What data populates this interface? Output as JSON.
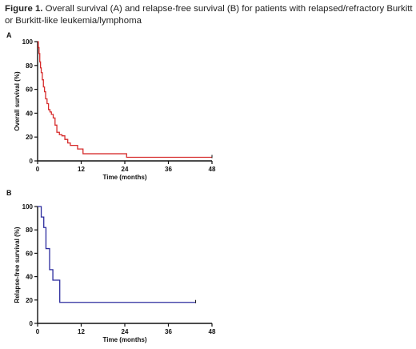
{
  "caption": {
    "figure_label": "Figure 1.",
    "text": " Overall survival (A) and relapse-free survival (B) for patients with relapsed/refractory Burkitt or Burkitt-like leukemia/lymphoma"
  },
  "colors": {
    "panel_a_line": "#d62a2a",
    "panel_b_line": "#2b2b9e",
    "axis": "#111111"
  },
  "chart_data": [
    {
      "type": "line",
      "step": true,
      "panel": "A",
      "xlabel": "Time (months)",
      "ylabel": "Overall survival (%)",
      "xlim": [
        0,
        48
      ],
      "ylim": [
        0,
        100
      ],
      "xticks": [
        0,
        12,
        24,
        36,
        48
      ],
      "yticks": [
        0,
        20,
        40,
        60,
        80,
        100
      ],
      "grid": false,
      "series": [
        {
          "color": "#d62a2a",
          "x": [
            0,
            0.2,
            0.4,
            0.6,
            0.8,
            1.0,
            1.3,
            1.6,
            1.9,
            2.2,
            2.6,
            3.0,
            3.4,
            3.8,
            4.3,
            4.8,
            5.3,
            6.0,
            6.7,
            7.5,
            8.3,
            9.0,
            9.8,
            11.0,
            12.5,
            24.5,
            48
          ],
          "y": [
            100,
            95,
            90,
            83,
            78,
            74,
            68,
            62,
            58,
            52,
            48,
            43,
            41,
            39,
            36,
            30,
            24,
            22,
            21,
            18,
            15,
            13,
            13,
            10,
            6,
            3,
            3
          ]
        }
      ]
    },
    {
      "type": "line",
      "step": true,
      "panel": "B",
      "xlabel": "Time (months)",
      "ylabel": "Relapse-free survival (%)",
      "xlim": [
        0,
        48
      ],
      "ylim": [
        0,
        100
      ],
      "xticks": [
        0,
        12,
        24,
        36,
        48
      ],
      "yticks": [
        0,
        20,
        40,
        60,
        80,
        100
      ],
      "grid": false,
      "series": [
        {
          "color": "#2b2b9e",
          "x": [
            0,
            1.0,
            1.7,
            2.3,
            3.3,
            4.2,
            6.1,
            43.5
          ],
          "y": [
            100,
            91,
            82,
            64,
            46,
            37,
            18,
            18
          ]
        }
      ]
    }
  ]
}
